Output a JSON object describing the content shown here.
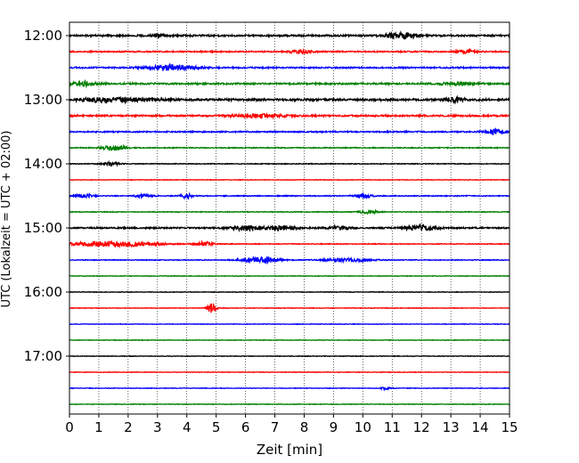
{
  "chart_data": {
    "type": "line",
    "xlabel": "Zeit  [min]",
    "ylabel": "UTC (Lokalzeit = UTC + 02:00)",
    "xlim": [
      0,
      15
    ],
    "x_ticks": [
      "0",
      "1",
      "2",
      "3",
      "4",
      "5",
      "6",
      "7",
      "8",
      "9",
      "10",
      "11",
      "12",
      "13",
      "14",
      "15"
    ],
    "y_tick_labels": [
      "12:00",
      "13:00",
      "14:00",
      "15:00",
      "16:00",
      "17:00"
    ],
    "grid": "vertical-dotted",
    "trace_colors": [
      "#000000",
      "#ff0000",
      "#0000ff",
      "#007f00"
    ],
    "row_start_times": [
      "12:00",
      "12:15",
      "12:30",
      "12:45",
      "13:00",
      "13:15",
      "13:30",
      "13:45",
      "14:00",
      "14:15",
      "14:30",
      "14:45",
      "15:00",
      "15:15",
      "15:30",
      "15:45",
      "16:00",
      "16:15",
      "16:30",
      "16:45",
      "17:00",
      "17:15",
      "17:30",
      "17:45"
    ],
    "traces": [
      {
        "row": 0,
        "color": "#000000",
        "noise": 0.9,
        "events": [
          {
            "t": 11.3,
            "amp": 3.0,
            "width": 0.6
          },
          {
            "t": 3.0,
            "amp": 1.5,
            "width": 0.3
          }
        ]
      },
      {
        "row": 1,
        "color": "#ff0000",
        "noise": 0.7,
        "events": [
          {
            "t": 7.9,
            "amp": 2.5,
            "width": 0.3
          },
          {
            "t": 13.5,
            "amp": 1.5,
            "width": 0.3
          }
        ]
      },
      {
        "row": 2,
        "color": "#0000ff",
        "noise": 0.8,
        "events": [
          {
            "t": 3.5,
            "amp": 3.0,
            "width": 0.8
          }
        ]
      },
      {
        "row": 3,
        "color": "#007f00",
        "noise": 0.9,
        "events": [
          {
            "t": 0.5,
            "amp": 2.5,
            "width": 0.4
          },
          {
            "t": 13.2,
            "amp": 1.5,
            "width": 0.6
          }
        ]
      },
      {
        "row": 4,
        "color": "#000000",
        "noise": 1.1,
        "events": [
          {
            "t": 1.5,
            "amp": 2.5,
            "width": 1.2
          },
          {
            "t": 13.1,
            "amp": 3.0,
            "width": 0.3
          }
        ]
      },
      {
        "row": 5,
        "color": "#ff0000",
        "noise": 0.9,
        "events": [
          {
            "t": 6.5,
            "amp": 2.0,
            "width": 0.8
          }
        ]
      },
      {
        "row": 6,
        "color": "#0000ff",
        "noise": 0.7,
        "events": [
          {
            "t": 14.5,
            "amp": 3.0,
            "width": 0.3
          }
        ]
      },
      {
        "row": 7,
        "color": "#007f00",
        "noise": 0.5,
        "events": [
          {
            "t": 1.5,
            "amp": 3.0,
            "width": 0.4
          }
        ]
      },
      {
        "row": 8,
        "color": "#000000",
        "noise": 0.4,
        "events": [
          {
            "t": 1.4,
            "amp": 2.0,
            "width": 0.3
          }
        ]
      },
      {
        "row": 9,
        "color": "#ff0000",
        "noise": 0.3,
        "events": []
      },
      {
        "row": 10,
        "color": "#0000ff",
        "noise": 0.5,
        "events": [
          {
            "t": 4.0,
            "amp": 2.5,
            "width": 0.2
          },
          {
            "t": 10.0,
            "amp": 2.5,
            "width": 0.3
          },
          {
            "t": 0.5,
            "amp": 2.0,
            "width": 0.3
          },
          {
            "t": 2.5,
            "amp": 1.5,
            "width": 0.3
          }
        ]
      },
      {
        "row": 11,
        "color": "#007f00",
        "noise": 0.4,
        "events": [
          {
            "t": 10.2,
            "amp": 2.0,
            "width": 0.3
          }
        ]
      },
      {
        "row": 12,
        "color": "#000000",
        "noise": 0.8,
        "events": [
          {
            "t": 6.0,
            "amp": 2.5,
            "width": 0.5
          },
          {
            "t": 7.2,
            "amp": 2.5,
            "width": 0.5
          },
          {
            "t": 12.0,
            "amp": 3.5,
            "width": 0.5
          },
          {
            "t": 9.2,
            "amp": 2.0,
            "width": 0.4
          }
        ]
      },
      {
        "row": 13,
        "color": "#ff0000",
        "noise": 0.4,
        "events": [
          {
            "t": 1.5,
            "amp": 3.0,
            "width": 1.5
          },
          {
            "t": 4.6,
            "amp": 2.5,
            "width": 0.3
          }
        ]
      },
      {
        "row": 14,
        "color": "#0000ff",
        "noise": 0.4,
        "events": [
          {
            "t": 6.5,
            "amp": 3.5,
            "width": 0.6
          },
          {
            "t": 9.5,
            "amp": 2.0,
            "width": 0.8
          }
        ]
      },
      {
        "row": 15,
        "color": "#007f00",
        "noise": 0.3,
        "events": []
      },
      {
        "row": 16,
        "color": "#000000",
        "noise": 0.3,
        "events": []
      },
      {
        "row": 17,
        "color": "#ff0000",
        "noise": 0.3,
        "events": [
          {
            "t": 4.85,
            "amp": 6.0,
            "width": 0.15
          }
        ]
      },
      {
        "row": 18,
        "color": "#0000ff",
        "noise": 0.3,
        "events": []
      },
      {
        "row": 19,
        "color": "#007f00",
        "noise": 0.3,
        "events": []
      },
      {
        "row": 20,
        "color": "#000000",
        "noise": 0.3,
        "events": []
      },
      {
        "row": 21,
        "color": "#ff0000",
        "noise": 0.3,
        "events": []
      },
      {
        "row": 22,
        "color": "#0000ff",
        "noise": 0.3,
        "events": [
          {
            "t": 10.8,
            "amp": 1.2,
            "width": 0.2
          }
        ]
      },
      {
        "row": 23,
        "color": "#007f00",
        "noise": 0.3,
        "events": []
      }
    ]
  }
}
